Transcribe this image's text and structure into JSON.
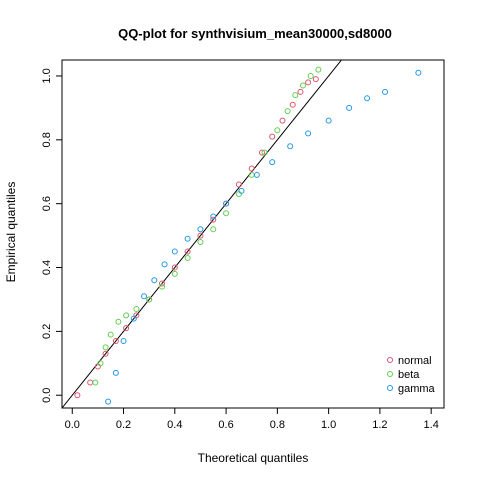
{
  "chart_data": {
    "type": "scatter",
    "title": "QQ-plot for synthvisium_mean30000,sd8000",
    "xlabel": "Theoretical quantiles",
    "ylabel": "Empirical quantiles",
    "xlim": [
      -0.04,
      1.45
    ],
    "ylim": [
      -0.04,
      1.05
    ],
    "x_ticks": [
      "0.0",
      "0.2",
      "0.4",
      "0.6",
      "0.8",
      "1.0",
      "1.2",
      "1.4"
    ],
    "y_ticks": [
      "0.0",
      "0.2",
      "0.4",
      "0.6",
      "0.8",
      "1.0"
    ],
    "reference_line": {
      "slope": 1,
      "intercept": 0,
      "color": "#000000"
    },
    "legend_position": "bottom-right",
    "series": [
      {
        "name": "normal",
        "color": "#DF536B",
        "points": [
          [
            0.02,
            0.0
          ],
          [
            0.07,
            0.04
          ],
          [
            0.1,
            0.09
          ],
          [
            0.13,
            0.13
          ],
          [
            0.17,
            0.17
          ],
          [
            0.21,
            0.21
          ],
          [
            0.25,
            0.25
          ],
          [
            0.3,
            0.3
          ],
          [
            0.35,
            0.35
          ],
          [
            0.4,
            0.4
          ],
          [
            0.45,
            0.45
          ],
          [
            0.5,
            0.5
          ],
          [
            0.55,
            0.55
          ],
          [
            0.6,
            0.6
          ],
          [
            0.65,
            0.66
          ],
          [
            0.7,
            0.71
          ],
          [
            0.74,
            0.76
          ],
          [
            0.78,
            0.81
          ],
          [
            0.82,
            0.86
          ],
          [
            0.86,
            0.91
          ],
          [
            0.89,
            0.95
          ],
          [
            0.92,
            0.98
          ],
          [
            0.95,
            0.99
          ]
        ]
      },
      {
        "name": "beta",
        "color": "#61D04F",
        "points": [
          [
            0.09,
            0.04
          ],
          [
            0.11,
            0.1
          ],
          [
            0.13,
            0.15
          ],
          [
            0.15,
            0.19
          ],
          [
            0.18,
            0.23
          ],
          [
            0.21,
            0.25
          ],
          [
            0.25,
            0.27
          ],
          [
            0.3,
            0.3
          ],
          [
            0.35,
            0.34
          ],
          [
            0.4,
            0.38
          ],
          [
            0.45,
            0.43
          ],
          [
            0.5,
            0.48
          ],
          [
            0.55,
            0.52
          ],
          [
            0.6,
            0.57
          ],
          [
            0.65,
            0.63
          ],
          [
            0.7,
            0.69
          ],
          [
            0.75,
            0.76
          ],
          [
            0.8,
            0.83
          ],
          [
            0.84,
            0.89
          ],
          [
            0.87,
            0.94
          ],
          [
            0.9,
            0.97
          ],
          [
            0.93,
            1.0
          ],
          [
            0.96,
            1.02
          ]
        ]
      },
      {
        "name": "gamma",
        "color": "#2297E6",
        "points": [
          [
            0.14,
            -0.02
          ],
          [
            0.17,
            0.07
          ],
          [
            0.2,
            0.17
          ],
          [
            0.24,
            0.24
          ],
          [
            0.28,
            0.31
          ],
          [
            0.32,
            0.36
          ],
          [
            0.36,
            0.41
          ],
          [
            0.4,
            0.45
          ],
          [
            0.45,
            0.49
          ],
          [
            0.5,
            0.52
          ],
          [
            0.55,
            0.56
          ],
          [
            0.6,
            0.6
          ],
          [
            0.66,
            0.64
          ],
          [
            0.72,
            0.69
          ],
          [
            0.78,
            0.73
          ],
          [
            0.85,
            0.78
          ],
          [
            0.92,
            0.82
          ],
          [
            1.0,
            0.86
          ],
          [
            1.08,
            0.9
          ],
          [
            1.15,
            0.93
          ],
          [
            1.22,
            0.95
          ],
          [
            1.35,
            1.01
          ]
        ]
      }
    ]
  }
}
